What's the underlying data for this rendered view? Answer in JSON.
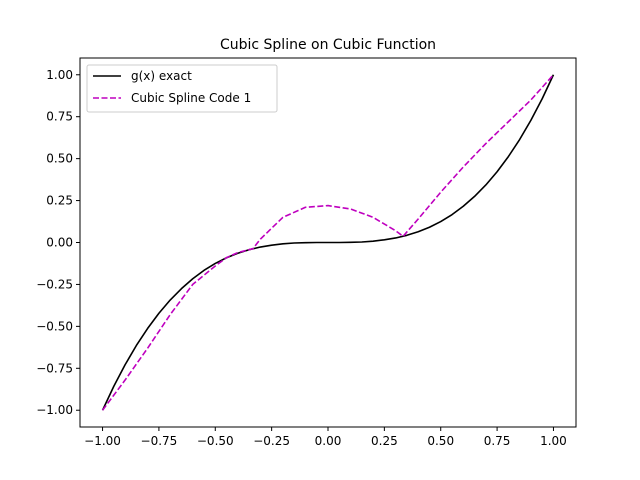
{
  "chart_data": {
    "type": "line",
    "title": "Cubic Spline on Cubic Function",
    "xlabel": "",
    "ylabel": "",
    "xlim": [
      -1.1,
      1.1
    ],
    "ylim": [
      -1.1,
      1.1
    ],
    "xticks": [
      -1.0,
      -0.75,
      -0.5,
      -0.25,
      0.0,
      0.25,
      0.5,
      0.75,
      1.0
    ],
    "xtick_labels": [
      "−1.00",
      "−0.75",
      "−0.50",
      "−0.25",
      "0.00",
      "0.25",
      "0.50",
      "0.75",
      "1.00"
    ],
    "yticks": [
      -1.0,
      -0.75,
      -0.5,
      -0.25,
      0.0,
      0.25,
      0.5,
      0.75,
      1.0
    ],
    "ytick_labels": [
      "−1.00",
      "−0.75",
      "−0.50",
      "−0.25",
      "0.00",
      "0.25",
      "0.50",
      "0.75",
      "1.00"
    ],
    "grid": false,
    "legend_position": "upper-left",
    "series": [
      {
        "name": "g(x) exact",
        "color": "#000000",
        "style": "solid",
        "x": [
          -1.0,
          -0.95,
          -0.9,
          -0.85,
          -0.8,
          -0.75,
          -0.7,
          -0.65,
          -0.6,
          -0.55,
          -0.5,
          -0.45,
          -0.4,
          -0.35,
          -0.3,
          -0.25,
          -0.2,
          -0.15,
          -0.1,
          -0.05,
          0.0,
          0.05,
          0.1,
          0.15,
          0.2,
          0.25,
          0.3,
          0.35,
          0.4,
          0.45,
          0.5,
          0.55,
          0.6,
          0.65,
          0.7,
          0.75,
          0.8,
          0.85,
          0.9,
          0.95,
          1.0
        ],
        "y": [
          -1.0,
          -0.857,
          -0.729,
          -0.614,
          -0.512,
          -0.422,
          -0.343,
          -0.275,
          -0.216,
          -0.166,
          -0.125,
          -0.091,
          -0.064,
          -0.043,
          -0.027,
          -0.016,
          -0.008,
          -0.003,
          -0.001,
          0.0,
          0.0,
          0.0,
          0.001,
          0.003,
          0.008,
          0.016,
          0.027,
          0.043,
          0.064,
          0.091,
          0.125,
          0.166,
          0.216,
          0.275,
          0.343,
          0.422,
          0.512,
          0.614,
          0.729,
          0.857,
          1.0
        ]
      },
      {
        "name": "Cubic Spline Code 1",
        "color": "#bf00bf",
        "style": "dashed",
        "x": [
          -1.0,
          -0.9,
          -0.8,
          -0.7,
          -0.6,
          -0.5,
          -0.45,
          -0.4,
          -0.333,
          -0.3,
          -0.2,
          -0.1,
          0.0,
          0.1,
          0.2,
          0.3,
          0.333,
          0.4,
          0.5,
          0.6,
          0.7,
          0.8,
          0.9,
          1.0
        ],
        "y": [
          -1.0,
          -0.82,
          -0.63,
          -0.43,
          -0.25,
          -0.14,
          -0.09,
          -0.06,
          -0.037,
          0.02,
          0.15,
          0.21,
          0.22,
          0.2,
          0.15,
          0.07,
          0.037,
          0.14,
          0.3,
          0.45,
          0.59,
          0.72,
          0.85,
          1.0
        ]
      }
    ]
  }
}
